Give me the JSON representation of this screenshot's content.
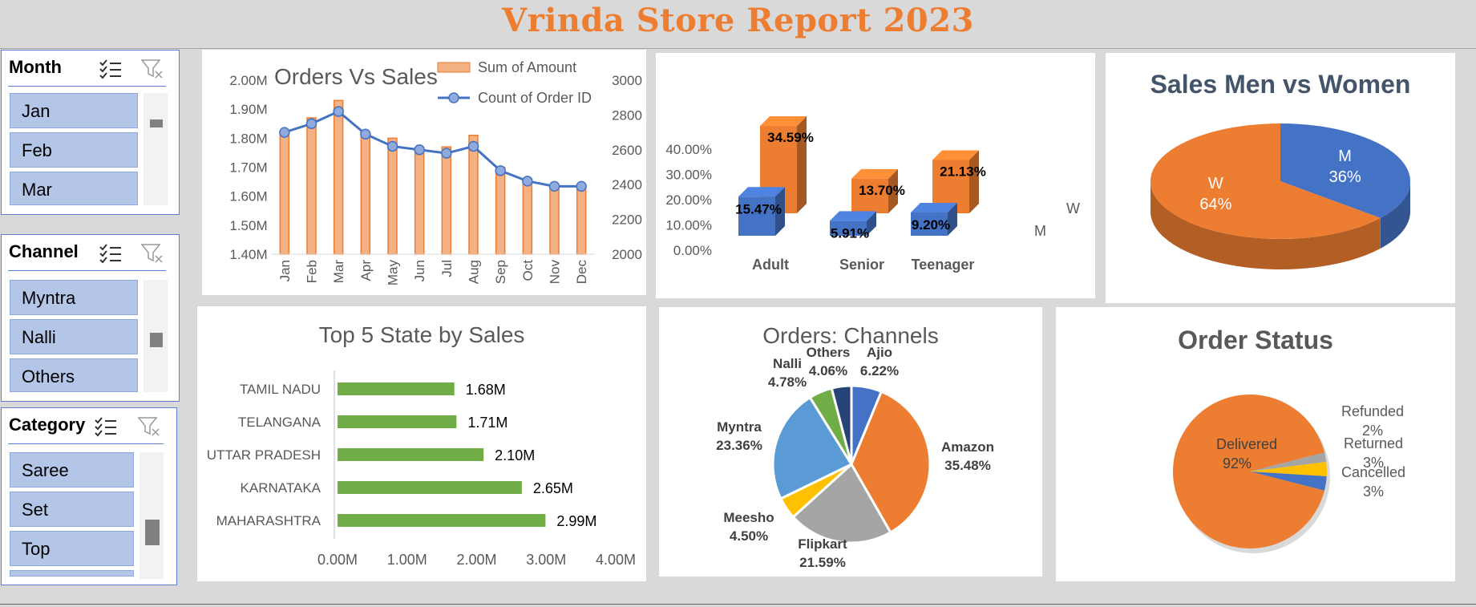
{
  "report_title": "Vrinda Store Report 2023",
  "slicers": {
    "month": {
      "title": "Month",
      "items": [
        "Jan",
        "Feb",
        "Mar"
      ]
    },
    "channel": {
      "title": "Channel",
      "items": [
        "Myntra",
        "Nalli",
        "Others"
      ]
    },
    "category": {
      "title": "Category",
      "items": [
        "Saree",
        "Set",
        "Top"
      ]
    }
  },
  "chart_data": [
    {
      "id": "orders_vs_sales",
      "type": "bar",
      "title": "Orders Vs Sales",
      "categories": [
        "Jan",
        "Feb",
        "Mar",
        "Apr",
        "May",
        "Jun",
        "Jul",
        "Aug",
        "Sep",
        "Oct",
        "Nov",
        "Dec"
      ],
      "series": [
        {
          "name": "Sum of Amount",
          "type": "bar",
          "axis": "left",
          "values": [
            1.82,
            1.87,
            1.93,
            1.82,
            1.8,
            1.76,
            1.77,
            1.81,
            1.7,
            1.66,
            1.63,
            1.64
          ],
          "color": "#f4b183",
          "stroke": "#ed7d31"
        },
        {
          "name": "Count of Order ID",
          "type": "line",
          "axis": "right",
          "values": [
            2700,
            2750,
            2820,
            2690,
            2620,
            2600,
            2580,
            2620,
            2480,
            2420,
            2390,
            2390
          ],
          "color": "#4472c4"
        }
      ],
      "y_left": {
        "ylim": [
          1.4,
          2.0
        ],
        "ticks": [
          "1.40M",
          "1.50M",
          "1.60M",
          "1.70M",
          "1.80M",
          "1.90M",
          "2.00M"
        ]
      },
      "y_right": {
        "ylim": [
          2000,
          3000
        ],
        "ticks": [
          "2000",
          "2200",
          "2400",
          "2600",
          "2800",
          "3000"
        ]
      },
      "legend": "top-right"
    },
    {
      "id": "gender_age",
      "type": "bar",
      "title": "",
      "categories": [
        "Adult",
        "Senior",
        "Teenager"
      ],
      "series": [
        {
          "name": "M",
          "values": [
            15.47,
            5.91,
            9.2
          ],
          "labels": [
            "15.47%",
            "5.91%",
            "9.20%"
          ],
          "color": "#4472c4"
        },
        {
          "name": "W",
          "values": [
            34.59,
            13.7,
            21.13
          ],
          "labels": [
            "34.59%",
            "13.70%",
            "21.13%"
          ],
          "color": "#ed7d31"
        }
      ],
      "ylim": [
        0,
        40
      ],
      "ticks": [
        "0.00%",
        "10.00%",
        "20.00%",
        "30.00%",
        "40.00%"
      ],
      "style": "3d-column"
    },
    {
      "id": "sales_men_women",
      "type": "pie",
      "title": "Sales Men vs Women",
      "slices": [
        {
          "name": "M",
          "value": 36,
          "label": "36%",
          "color": "#4472c4"
        },
        {
          "name": "W",
          "value": 64,
          "label": "64%",
          "color": "#ed7d31"
        }
      ],
      "style": "3d"
    },
    {
      "id": "top5_state",
      "type": "bar",
      "orientation": "horizontal",
      "title": "Top 5 State by Sales",
      "categories": [
        "TAMIL NADU",
        "TELANGANA",
        "UTTAR PRADESH",
        "KARNATAKA",
        "MAHARASHTRA"
      ],
      "values": [
        1.68,
        1.71,
        2.1,
        2.65,
        2.99
      ],
      "labels": [
        "1.68M",
        "1.71M",
        "2.10M",
        "2.65M",
        "2.99M"
      ],
      "xlim": [
        0,
        4
      ],
      "ticks": [
        "0.00M",
        "1.00M",
        "2.00M",
        "3.00M",
        "4.00M"
      ],
      "color": "#70ad47"
    },
    {
      "id": "orders_channels",
      "type": "pie",
      "title": "Orders: Channels",
      "slices": [
        {
          "name": "Ajio",
          "value": 6.22,
          "label": "6.22%",
          "color": "#4472c4"
        },
        {
          "name": "Amazon",
          "value": 35.48,
          "label": "35.48%",
          "color": "#ed7d31"
        },
        {
          "name": "Flipkart",
          "value": 21.59,
          "label": "21.59%",
          "color": "#a5a5a5"
        },
        {
          "name": "Meesho",
          "value": 4.5,
          "label": "4.50%",
          "color": "#ffc000"
        },
        {
          "name": "Myntra",
          "value": 23.36,
          "label": "23.36%",
          "color": "#5b9bd5"
        },
        {
          "name": "Nalli",
          "value": 4.78,
          "label": "4.78%",
          "color": "#70ad47"
        },
        {
          "name": "Others",
          "value": 4.06,
          "label": "4.06%",
          "color": "#264478"
        }
      ]
    },
    {
      "id": "order_status",
      "type": "pie",
      "title": "Order Status",
      "slices": [
        {
          "name": "Delivered",
          "value": 92,
          "label": "92%",
          "color": "#ed7d31"
        },
        {
          "name": "Refunded",
          "value": 2,
          "label": "2%",
          "color": "#a5a5a5"
        },
        {
          "name": "Returned",
          "value": 3,
          "label": "3%",
          "color": "#ffc000"
        },
        {
          "name": "Cancelled",
          "value": 3,
          "label": "3%",
          "color": "#4472c4"
        }
      ]
    }
  ]
}
